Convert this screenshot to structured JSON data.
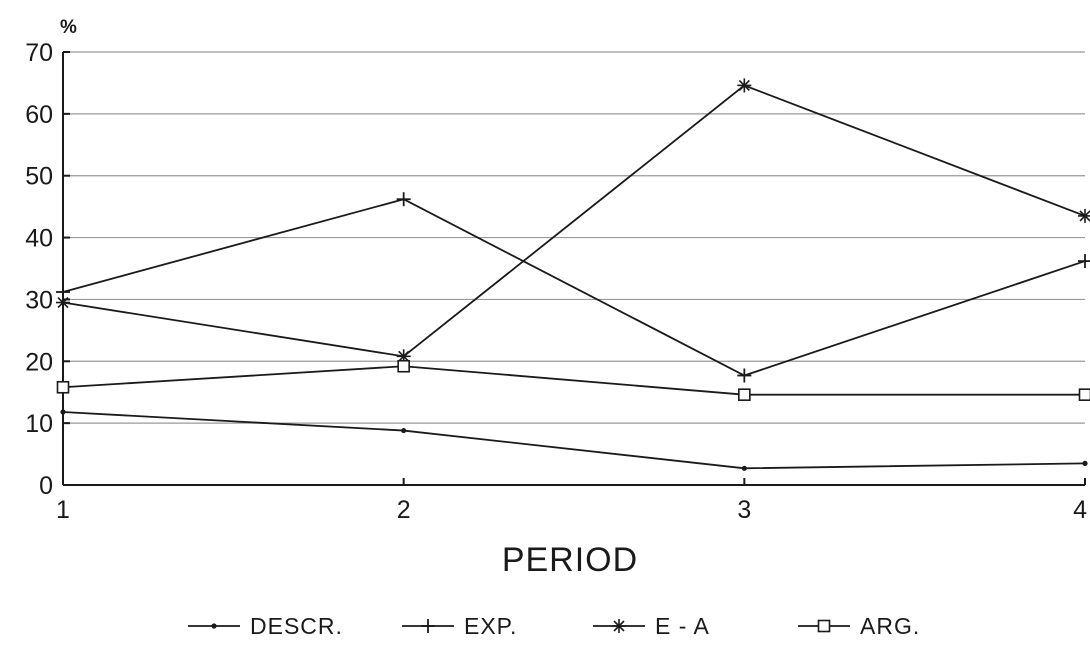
{
  "chart_data": {
    "type": "line",
    "y_unit_label": "%",
    "xlabel": "PERIOD",
    "ylabel": "",
    "categories": [
      "1",
      "2",
      "3",
      "4"
    ],
    "x": [
      1,
      2,
      3,
      4
    ],
    "xlim": [
      1,
      4
    ],
    "ylim": [
      0,
      70
    ],
    "y_ticks": [
      "0",
      "10",
      "20",
      "30",
      "40",
      "50",
      "60",
      "70"
    ],
    "grid": true,
    "legend_position": "bottom",
    "series": [
      {
        "name": "DESCR.",
        "marker": "dot",
        "values": [
          11.8,
          8.8,
          2.7,
          3.5
        ]
      },
      {
        "name": "EXP.",
        "marker": "plus",
        "values": [
          31.2,
          46.2,
          17.7,
          36.2
        ]
      },
      {
        "name": "E - A",
        "marker": "asterisk",
        "values": [
          29.5,
          20.8,
          64.6,
          43.5
        ]
      },
      {
        "name": "ARG.",
        "marker": "square",
        "values": [
          15.8,
          19.2,
          14.6,
          14.6
        ]
      }
    ],
    "colors": {
      "line": "#1a1a1a",
      "grid": "#9a9a9a",
      "background": "#ffffff"
    }
  }
}
